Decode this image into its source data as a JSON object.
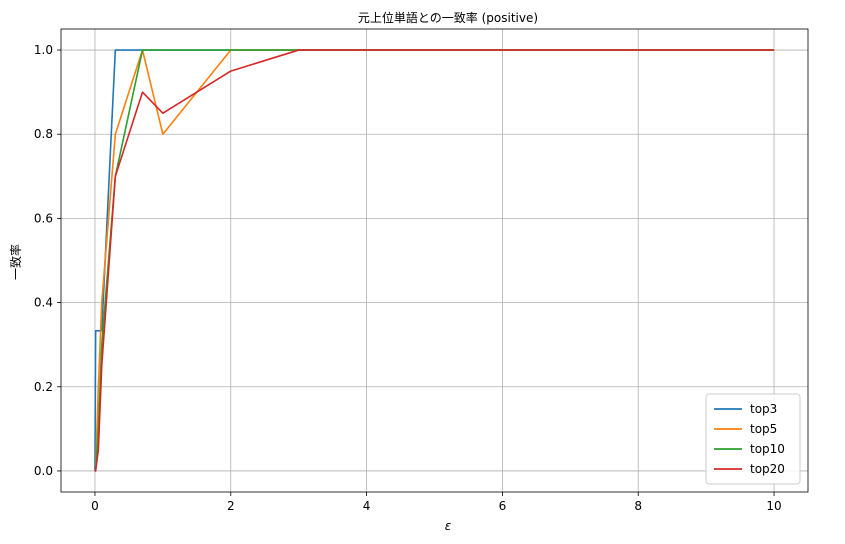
{
  "chart_data": {
    "type": "line",
    "title": "元上位単語との一致率 (positive)",
    "xlabel": "ε",
    "ylabel": "一致率",
    "xlim": [
      -0.5,
      10.5
    ],
    "ylim": [
      -0.05,
      1.05
    ],
    "xticks": [
      0,
      2,
      4,
      6,
      8,
      10
    ],
    "xtick_labels": [
      "0",
      "2",
      "4",
      "6",
      "8",
      "10"
    ],
    "yticks": [
      0.0,
      0.2,
      0.4,
      0.6,
      0.8,
      1.0
    ],
    "ytick_labels": [
      "0.0",
      "0.2",
      "0.4",
      "0.6",
      "0.8",
      "1.0"
    ],
    "grid": true,
    "legend_position": "lower-right",
    "series": [
      {
        "name": "top3",
        "color": "#1f77b4",
        "x": [
          0,
          0.01,
          0.05,
          0.1,
          0.3,
          0.7,
          1,
          2,
          3,
          10
        ],
        "y": [
          0,
          0.333,
          0.333,
          0.333,
          1.0,
          1.0,
          1.0,
          1.0,
          1.0,
          1.0
        ]
      },
      {
        "name": "top5",
        "color": "#ff7f0e",
        "x": [
          0,
          0.01,
          0.05,
          0.1,
          0.3,
          0.7,
          1,
          2,
          3,
          10
        ],
        "y": [
          0,
          0.0,
          0.2,
          0.4,
          0.8,
          1.0,
          0.8,
          1.0,
          1.0,
          1.0
        ]
      },
      {
        "name": "top10",
        "color": "#2ca02c",
        "x": [
          0,
          0.01,
          0.05,
          0.1,
          0.3,
          0.7,
          1,
          2,
          3,
          10
        ],
        "y": [
          0,
          0.0,
          0.1,
          0.3,
          0.7,
          1.0,
          1.0,
          1.0,
          1.0,
          1.0
        ]
      },
      {
        "name": "top20",
        "color": "#d62728",
        "x": [
          0,
          0.01,
          0.05,
          0.1,
          0.3,
          0.7,
          1,
          2,
          3,
          10
        ],
        "y": [
          0,
          0.0,
          0.05,
          0.25,
          0.7,
          0.9,
          0.85,
          0.95,
          1.0,
          1.0
        ]
      }
    ]
  }
}
